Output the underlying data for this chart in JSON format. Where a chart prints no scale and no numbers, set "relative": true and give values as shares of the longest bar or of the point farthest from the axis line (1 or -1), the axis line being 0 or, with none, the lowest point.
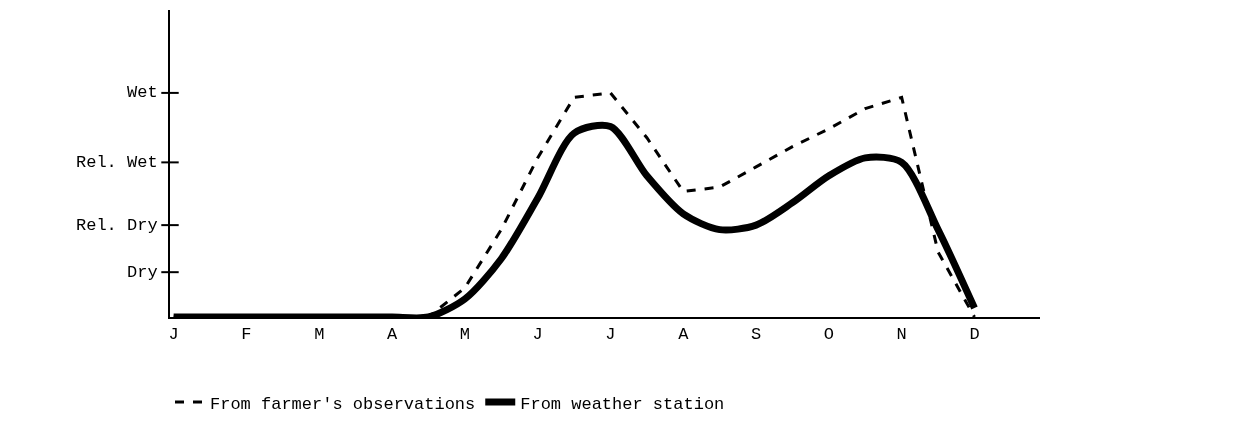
{
  "chart_data": {
    "type": "line",
    "relative": true,
    "categories": [
      "J",
      null,
      "F",
      null,
      "M",
      null,
      "A",
      null,
      "M",
      null,
      "J",
      null,
      "J",
      null,
      "A",
      null,
      "S",
      null,
      "O",
      null,
      "N",
      null,
      "D",
      null
    ],
    "annotations": [
      "Dry",
      "Rel. Dry",
      "Rel. Wet",
      "Wet"
    ],
    "series": [
      {
        "name": "From farmer's observations",
        "color": "#000000",
        "line_style": "dashed",
        "values": [
          0,
          0,
          0,
          0,
          0,
          0,
          0,
          0,
          0.13,
          0.39,
          0.71,
          0.98,
          1,
          0.8,
          0.56,
          0.58,
          0.67,
          0.76,
          0.84,
          0.93,
          0.98,
          0.29,
          0,
          null
        ]
      },
      {
        "name": "From weather station",
        "color": "#000000",
        "line_style": "solid",
        "values": [
          0,
          0,
          0,
          0,
          0,
          0,
          0,
          0,
          0.08,
          0.26,
          0.53,
          0.82,
          0.85,
          0.63,
          0.46,
          0.39,
          0.41,
          0.51,
          0.63,
          0.71,
          0.69,
          0.39,
          0.04,
          null
        ]
      }
    ],
    "legend": "bottom"
  }
}
